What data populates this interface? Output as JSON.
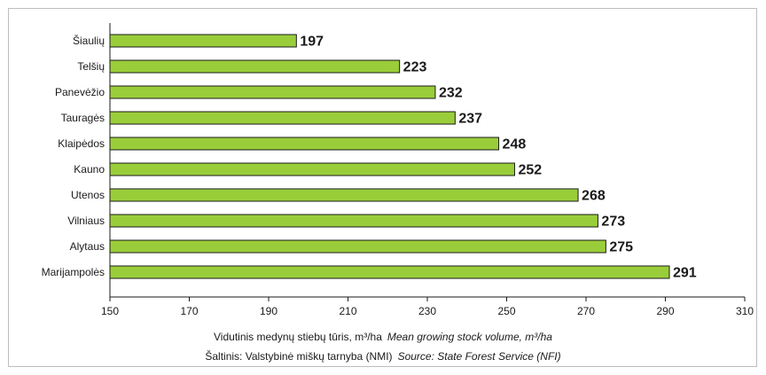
{
  "chart_data": {
    "type": "bar",
    "orientation": "horizontal",
    "categories": [
      "Šiaulių",
      "Telšių",
      "Panevėžio",
      "Tauragės",
      "Klaipėdos",
      "Kauno",
      "Utenos",
      "Vilniaus",
      "Alytaus",
      "Marijampolės"
    ],
    "values": [
      197,
      223,
      232,
      237,
      248,
      252,
      268,
      273,
      275,
      291
    ],
    "xlim": [
      150,
      310
    ],
    "xticks": [
      150,
      170,
      190,
      210,
      230,
      250,
      270,
      290,
      310
    ],
    "bar_color": "#9acd3a",
    "bar_edge_color": "#1a1a1a",
    "xlabel": "Vidutinis medynų stiebų tūris, m³/ha",
    "xlabel_en": "Mean growing stock volume, m³/ha",
    "source": "Šaltinis: Valstybinė miškų tarnyba (NMI)",
    "source_en": "Source: State Forest Service (NFI)",
    "grid": false,
    "legend": "none"
  }
}
